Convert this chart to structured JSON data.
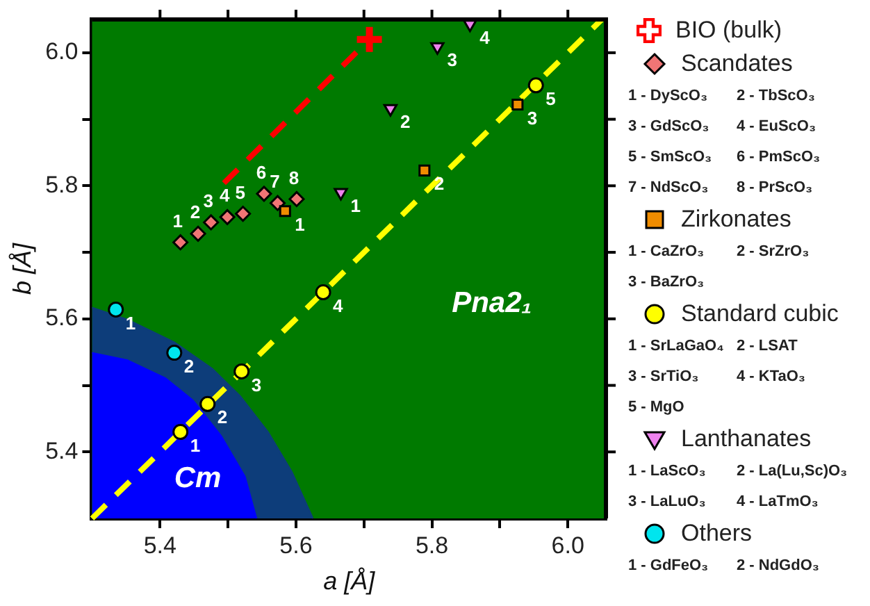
{
  "chart_data": {
    "type": "scatter",
    "xlabel": "a [Å]",
    "ylabel": "b [Å]",
    "legend": "right",
    "xlim": [
      5.3,
      6.056
    ],
    "ylim": [
      5.3,
      6.05
    ],
    "xticks": [
      5.4,
      {
        "value": 5.5,
        "label": null
      },
      5.6,
      {
        "value": 5.7,
        "label": null
      },
      5.8,
      {
        "value": 5.9,
        "label": null
      },
      {
        "value": 6,
        "label": "6.0"
      }
    ],
    "yticks": [
      5.4,
      {
        "value": 5.5,
        "label": null
      },
      5.6,
      {
        "value": 5.7,
        "label": null
      },
      5.8,
      {
        "value": 5.9,
        "label": null
      },
      {
        "value": 6,
        "label": "6.0"
      }
    ],
    "bands": [
      {
        "axis": "x",
        "from": 5.3,
        "to": 6.056,
        "color": "#007a00"
      }
    ],
    "series": [
      {
        "type": "area",
        "color": "#0d3d7a",
        "x": [
          5.3,
          5.352,
          5.421,
          5.477,
          5.518,
          5.559,
          5.594,
          5.625
        ],
        "values": [
          5.617,
          5.599,
          5.565,
          5.525,
          5.484,
          5.43,
          5.37,
          5.3
        ]
      },
      {
        "type": "area",
        "color": "#0000ff",
        "x": [
          5.3,
          5.352,
          5.408,
          5.449,
          5.49,
          5.525,
          5.542
        ],
        "values": [
          5.549,
          5.538,
          5.511,
          5.477,
          5.424,
          5.363,
          5.3
        ]
      },
      {
        "type": "line",
        "color": "#ffff00",
        "line_style": "dashed",
        "marker": "none",
        "x": [
          5.3,
          6.05
        ],
        "values": [
          5.3,
          6.05
        ]
      },
      {
        "type": "line",
        "color": "#ff0000",
        "line_style": "dashed",
        "marker": "none",
        "x": [
          5.494,
          5.708
        ],
        "values": [
          5.804,
          6.02
        ]
      },
      {
        "name": "BIO (bulk)",
        "color": "#ff0000",
        "marker": "cross",
        "x": [
          5.708
        ],
        "values": [
          6.02
        ]
      },
      {
        "name": "Scandates",
        "color": "#f07575",
        "marker": "diamond",
        "x": [
          5.43,
          5.456,
          5.475,
          5.499,
          5.522,
          5.553,
          5.573,
          5.601
        ],
        "values": [
          5.715,
          5.728,
          5.745,
          5.753,
          5.758,
          5.788,
          5.774,
          5.78
        ]
      },
      {
        "name": "Zirkonates",
        "color": "#f08c00",
        "marker": "square",
        "x": [
          5.584,
          5.789,
          5.926
        ],
        "values": [
          5.762,
          5.823,
          5.922
        ]
      },
      {
        "name": "Standard cubic",
        "color": "#ffff00",
        "marker": "circle",
        "x": [
          5.43,
          5.47,
          5.52,
          5.64,
          5.953
        ],
        "values": [
          5.43,
          5.472,
          5.521,
          5.64,
          5.951
        ]
      },
      {
        "name": "Lanthanates",
        "color": "#ee82ee",
        "marker": "triangle",
        "x": [
          5.666,
          5.739,
          5.808,
          5.856
        ],
        "values": [
          5.79,
          5.916,
          6.009,
          6.043
        ]
      },
      {
        "name": "Others",
        "color": "#00e5ee",
        "marker": "circle",
        "x": [
          5.335,
          5.421
        ],
        "values": [
          5.614,
          5.549
        ]
      }
    ],
    "annotations": [
      {
        "text": "1",
        "x": 5.43,
        "y": 5.715
      },
      {
        "text": "2",
        "x": 5.456,
        "y": 5.728
      },
      {
        "text": "3",
        "x": 5.475,
        "y": 5.745
      },
      {
        "text": "4",
        "x": 5.499,
        "y": 5.753
      },
      {
        "text": "5",
        "x": 5.522,
        "y": 5.758
      },
      {
        "text": "6",
        "x": 5.553,
        "y": 5.788
      },
      {
        "text": "7",
        "x": 5.573,
        "y": 5.774
      },
      {
        "text": "8",
        "x": 5.601,
        "y": 5.78
      },
      {
        "text": "1",
        "x": 5.584,
        "y": 5.762
      },
      {
        "text": "2",
        "x": 5.789,
        "y": 5.823
      },
      {
        "text": "3",
        "x": 5.926,
        "y": 5.922
      },
      {
        "text": "1",
        "x": 5.43,
        "y": 5.43
      },
      {
        "text": "2",
        "x": 5.47,
        "y": 5.472
      },
      {
        "text": "3",
        "x": 5.52,
        "y": 5.521
      },
      {
        "text": "4",
        "x": 5.64,
        "y": 5.64
      },
      {
        "text": "5",
        "x": 5.953,
        "y": 5.951
      },
      {
        "text": "1",
        "x": 5.666,
        "y": 5.79
      },
      {
        "text": "2",
        "x": 5.739,
        "y": 5.916
      },
      {
        "text": "3",
        "x": 5.808,
        "y": 6.009
      },
      {
        "text": "4",
        "x": 5.856,
        "y": 6.043
      },
      {
        "text": "1",
        "x": 5.335,
        "y": 5.614
      },
      {
        "text": "2",
        "x": 5.421,
        "y": 5.549
      },
      "1 - DyScO₃",
      "2 - TbScO₃",
      "3 - GdScO₃",
      "4 - EuScO₃",
      "5 - SmScO₃",
      "6 - PmScO₃",
      "7 - NdScO₃",
      "8 - PrScO₃",
      "1 - CaZrO₃",
      "2 - SrZrO₃",
      "3 - BaZrO₃",
      "1 - SrLaGaO₄",
      "2 - LSAT",
      "3 - SrTiO₃",
      "4 - KTaO₃",
      "5 - MgO",
      "1 - LaScO₃",
      "2 - La(Lu,Sc)O₃",
      "3 - LaLuO₃",
      "4 - LaTmO₃",
      "1 - GdFeO₃",
      "2 - NdGdO₃",
      "Cm",
      "Pna2₁"
    ]
  }
}
